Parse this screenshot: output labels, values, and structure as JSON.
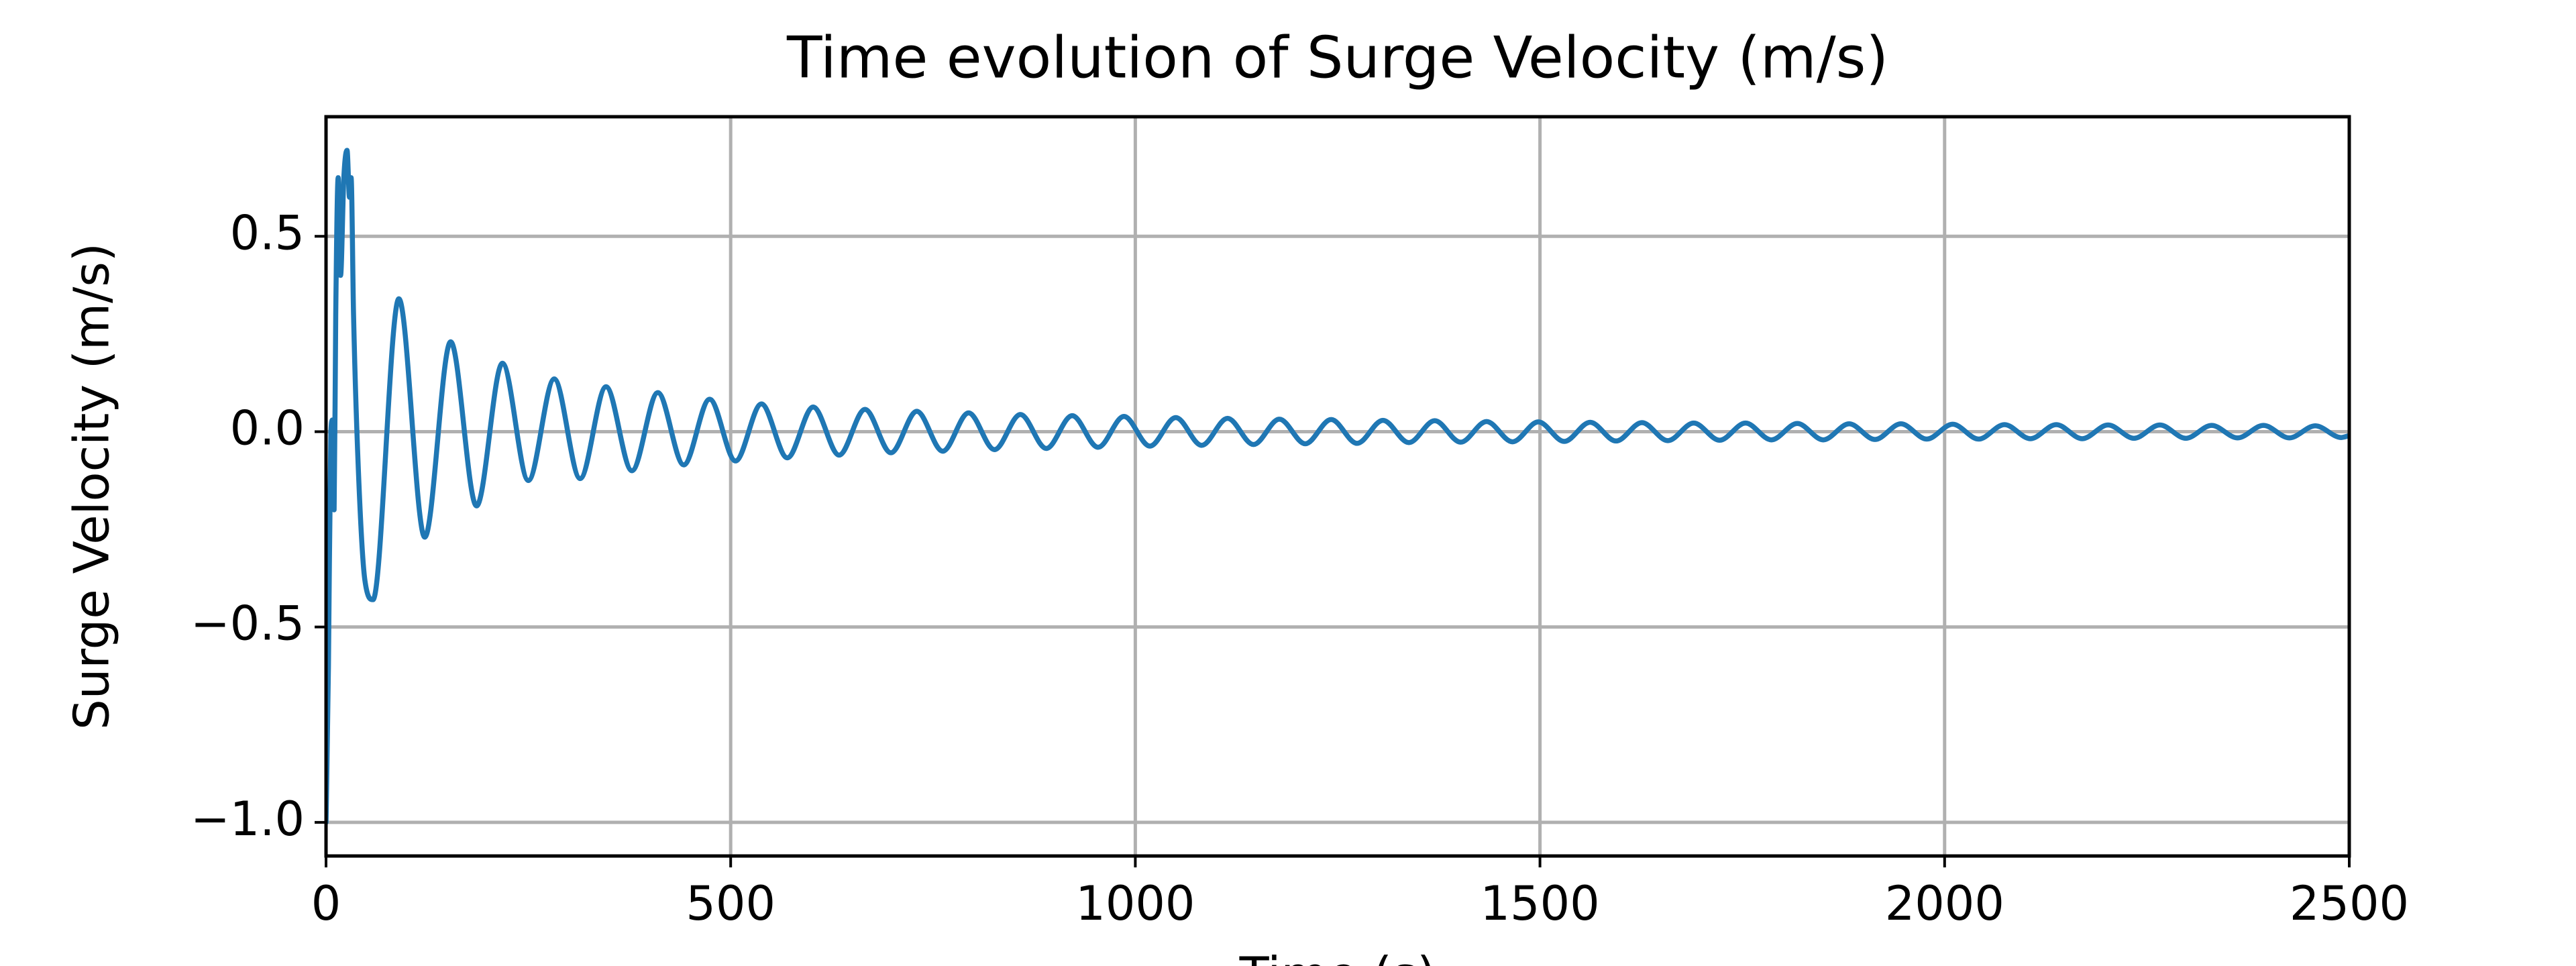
{
  "chart_data": {
    "type": "line",
    "title": "Time evolution of Surge Velocity (m/s)",
    "x_label": "Time (s)",
    "y_label": "Surge Velocity (m/s)",
    "xlim": [
      0,
      2500
    ],
    "ylim": [
      -1.086,
      0.806
    ],
    "xticks": [
      0,
      500,
      1000,
      1500,
      2000,
      2500
    ],
    "yticks": [
      {
        "value": -1.0,
        "label": "−1.0"
      },
      {
        "value": -0.5,
        "label": "−0.5"
      },
      {
        "value": 0,
        "label": "0.0"
      },
      0.5
    ],
    "grid": true,
    "series": [
      {
        "name": "Surge Velocity",
        "color": "#1f77b4",
        "x": [
          0,
          3,
          6,
          8,
          10,
          12,
          15,
          18,
          22,
          26,
          29,
          31,
          34,
          40,
          48,
          58,
          90,
          122,
          154,
          186,
          218,
          250,
          282,
          314,
          346,
          378,
          410,
          442,
          474,
          506,
          538,
          570,
          602,
          634,
          666,
          698,
          730,
          762,
          794,
          826,
          858,
          890,
          922,
          954,
          986,
          1018,
          1050,
          1082,
          1114,
          1146,
          1178,
          1210,
          1242,
          1274,
          1306,
          1338,
          1370,
          1402,
          1434,
          1466,
          1498,
          1530,
          1562,
          1594,
          1626,
          1658,
          1690,
          1722,
          1754,
          1786,
          1818,
          1850,
          1882,
          1914,
          1946,
          1978,
          2010,
          2042,
          2074,
          2106,
          2138,
          2170,
          2202,
          2234,
          2266,
          2298,
          2330,
          2362,
          2394,
          2426,
          2458,
          2490,
          2500
        ],
        "values": [
          -1.0,
          -0.6,
          0.0,
          0.03,
          -0.2,
          0.3,
          0.65,
          0.4,
          0.65,
          0.72,
          0.6,
          0.65,
          0.3,
          -0.1,
          -0.38,
          -0.43,
          0.34,
          -0.27,
          0.23,
          -0.19,
          0.175,
          -0.125,
          0.135,
          -0.12,
          0.115,
          -0.1,
          0.1,
          -0.085,
          0.083,
          -0.075,
          0.071,
          -0.067,
          0.063,
          -0.06,
          0.057,
          -0.054,
          0.052,
          -0.05,
          0.048,
          -0.046,
          0.044,
          -0.043,
          0.041,
          -0.04,
          0.039,
          -0.037,
          0.036,
          -0.035,
          0.034,
          -0.033,
          0.032,
          -0.031,
          0.031,
          -0.03,
          0.029,
          -0.028,
          0.028,
          -0.027,
          0.026,
          -0.026,
          0.025,
          -0.025,
          0.024,
          -0.024,
          0.023,
          -0.023,
          0.022,
          -0.022,
          0.022,
          -0.021,
          0.021,
          -0.021,
          0.02,
          -0.02,
          0.02,
          -0.019,
          0.019,
          -0.019,
          0.018,
          -0.018,
          0.018,
          -0.018,
          0.017,
          -0.017,
          0.017,
          -0.017,
          0.016,
          -0.016,
          0.016,
          -0.016,
          0.015,
          -0.015,
          -0.01
        ]
      }
    ]
  }
}
